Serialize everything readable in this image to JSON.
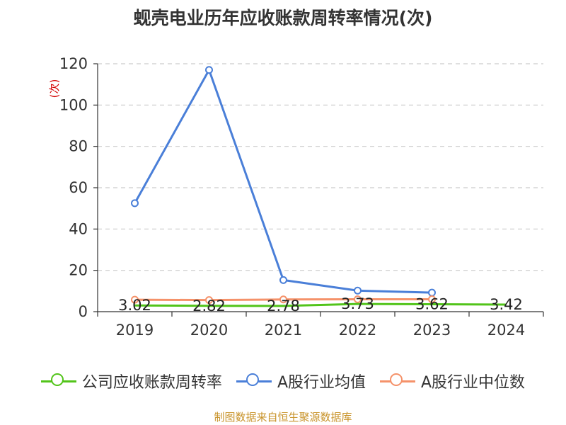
{
  "chart_data": {
    "type": "line",
    "title": "蚬壳电业历年应收账款周转率情况(次)",
    "ylabel": "(次)",
    "xlabel": "",
    "categories": [
      "2019",
      "2020",
      "2021",
      "2022",
      "2023",
      "2024"
    ],
    "ylim": [
      0,
      120
    ],
    "yticks": [
      0,
      20,
      40,
      60,
      80,
      100,
      120
    ],
    "grid": true,
    "legend_position": "bottom",
    "series": [
      {
        "name": "公司应收账款周转率",
        "color": "#52c41a",
        "values": [
          3.02,
          2.82,
          2.78,
          3.73,
          3.62,
          3.42
        ],
        "labels": [
          "3.02",
          "2.82",
          "2.78",
          "3.73",
          "3.62",
          "3.42"
        ]
      },
      {
        "name": "A股行业均值",
        "color": "#4a7fd8",
        "values": [
          52.5,
          117,
          15.3,
          10.2,
          9.2,
          null
        ]
      },
      {
        "name": "A股行业中位数",
        "color": "#f5926a",
        "values": [
          5.8,
          5.6,
          5.9,
          6.0,
          6.0,
          null
        ]
      }
    ]
  },
  "footer": {
    "source": "制图数据来自恒生聚源数据库"
  }
}
